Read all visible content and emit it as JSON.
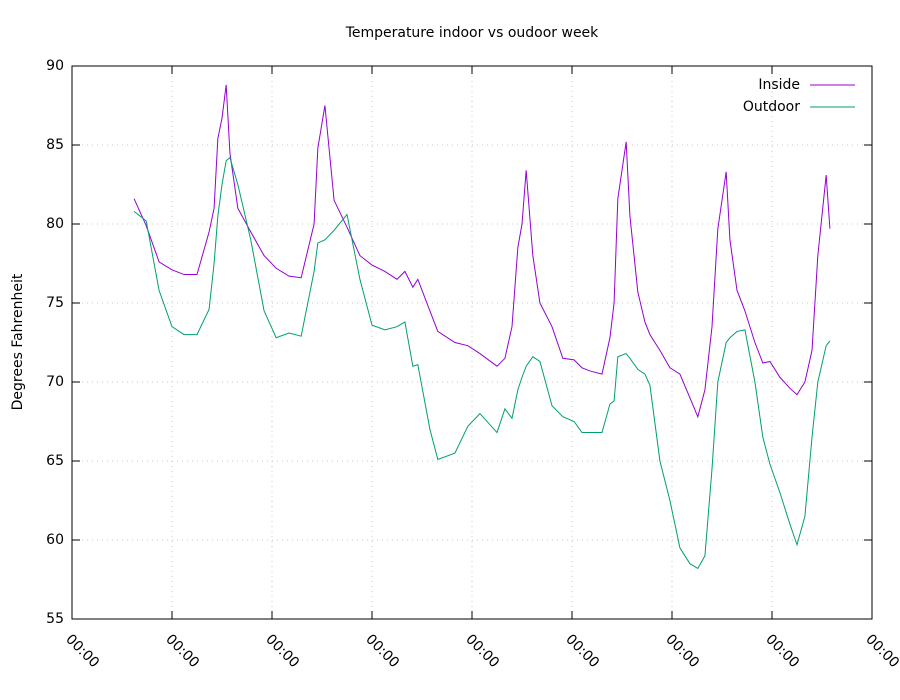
{
  "chart_data": {
    "type": "line",
    "title": "Temperature indoor vs oudoor week",
    "y_label": "Degrees Fahrenheit",
    "x": [
      14.9,
      17.8,
      20.9,
      24.0,
      26.9,
      30.0,
      32.9,
      34.1,
      35.0,
      36.0,
      37.0,
      37.9,
      39.8,
      42.9,
      46.1,
      49.0,
      52.1,
      55.0,
      58.1,
      59.0,
      60.7,
      62.9,
      66.0,
      69.1,
      72.0,
      75.1,
      78.0,
      79.9,
      81.8,
      83.0,
      85.9,
      87.8,
      91.9,
      95.0,
      97.9,
      102.0,
      103.9,
      105.6,
      107.0,
      108.0,
      109.0,
      110.6,
      112.3,
      115.2,
      117.8,
      120.5,
      122.4,
      124.3,
      127.2,
      129.1,
      130.1,
      131.0,
      133.0,
      133.9,
      135.8,
      137.5,
      138.7,
      141.1,
      143.5,
      145.9,
      148.3,
      150.2,
      151.9,
      153.6,
      155.0,
      157.0,
      157.9,
      159.6,
      161.5,
      163.9,
      165.8,
      167.5,
      169.9,
      172.3,
      174.0,
      175.9,
      177.6,
      179.0,
      181.0,
      181.9
    ],
    "series": [
      {
        "name": "Inside",
        "color": "#9400d3",
        "values": [
          81.6,
          79.9,
          77.6,
          77.1,
          76.8,
          76.8,
          79.5,
          81.0,
          85.4,
          86.7,
          88.8,
          84.5,
          81.0,
          79.5,
          78.0,
          77.2,
          76.7,
          76.6,
          80.0,
          84.8,
          87.5,
          81.5,
          79.8,
          78.0,
          77.4,
          77.0,
          76.5,
          77.0,
          76.0,
          76.5,
          74.5,
          73.2,
          72.5,
          72.3,
          71.8,
          71.0,
          71.5,
          73.5,
          78.5,
          80.0,
          83.4,
          78.0,
          75.0,
          73.5,
          71.5,
          71.4,
          70.9,
          70.7,
          70.5,
          72.8,
          75.0,
          81.6,
          85.2,
          80.5,
          75.7,
          73.8,
          73.0,
          72.0,
          70.9,
          70.5,
          69.0,
          67.8,
          69.5,
          73.5,
          79.7,
          83.3,
          79.0,
          75.8,
          74.5,
          72.5,
          71.2,
          71.3,
          70.3,
          69.6,
          69.2,
          70.0,
          72.0,
          78.0,
          83.1,
          79.7
        ]
      },
      {
        "name": "Outdoor",
        "color": "#009e73",
        "values": [
          80.8,
          80.2,
          75.8,
          73.5,
          73.0,
          73.0,
          74.6,
          77.5,
          80.5,
          82.5,
          84.0,
          84.2,
          82.5,
          79.0,
          74.5,
          72.8,
          73.1,
          72.9,
          77.0,
          78.8,
          79.0,
          79.6,
          80.6,
          76.5,
          73.6,
          73.3,
          73.5,
          73.8,
          71.0,
          71.1,
          67.0,
          65.1,
          65.5,
          67.2,
          68.0,
          66.8,
          68.3,
          67.7,
          69.5,
          70.3,
          71.0,
          71.6,
          71.3,
          68.5,
          67.8,
          67.5,
          66.8,
          66.8,
          66.8,
          68.6,
          68.8,
          71.6,
          71.8,
          71.5,
          70.8,
          70.5,
          69.8,
          65.0,
          62.5,
          59.5,
          58.5,
          58.2,
          59.0,
          64.5,
          70.0,
          72.5,
          72.8,
          73.2,
          73.3,
          70.0,
          66.5,
          64.8,
          63.0,
          61.0,
          59.7,
          61.5,
          66.5,
          70.0,
          72.3,
          72.6
        ]
      }
    ],
    "xlim": [
      0,
      192
    ],
    "xticks": [
      {
        "value": 0,
        "label": "00:00"
      },
      {
        "value": 24,
        "label": "00:00"
      },
      {
        "value": 48,
        "label": "00:00"
      },
      {
        "value": 72,
        "label": "00:00"
      },
      {
        "value": 96,
        "label": "00:00"
      },
      {
        "value": 120,
        "label": "00:00"
      },
      {
        "value": 144,
        "label": "00:00"
      },
      {
        "value": 168,
        "label": "00:00"
      },
      {
        "value": 192,
        "label": "00:00"
      }
    ],
    "ylim": [
      55,
      90
    ],
    "yticks": [
      55,
      60,
      65,
      70,
      75,
      80,
      85,
      90
    ],
    "grid": true,
    "legend": "top-right"
  }
}
